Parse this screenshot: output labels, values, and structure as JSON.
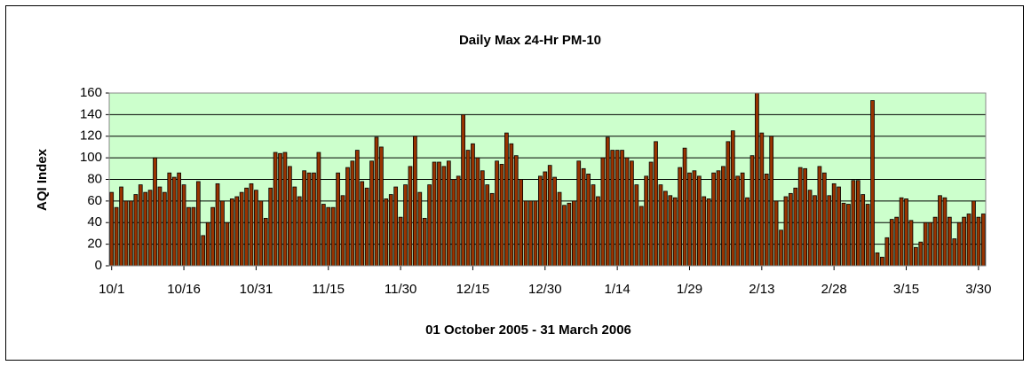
{
  "chart_data": {
    "type": "bar",
    "title": "Daily Max 24-Hr PM-10",
    "ylabel": "AQI Index",
    "xlabel": "01 October 2005 - 31 March 2006",
    "categories": [
      "10/1",
      null,
      null,
      null,
      null,
      null,
      null,
      null,
      null,
      null,
      null,
      null,
      null,
      null,
      null,
      "10/16",
      null,
      null,
      null,
      null,
      null,
      null,
      null,
      null,
      null,
      null,
      null,
      null,
      null,
      null,
      "10/31",
      null,
      null,
      null,
      null,
      null,
      null,
      null,
      null,
      null,
      null,
      null,
      null,
      null,
      null,
      "11/15",
      null,
      null,
      null,
      null,
      null,
      null,
      null,
      null,
      null,
      null,
      null,
      null,
      null,
      null,
      "11/30",
      null,
      null,
      null,
      null,
      null,
      null,
      null,
      null,
      null,
      null,
      null,
      null,
      null,
      null,
      "12/15",
      null,
      null,
      null,
      null,
      null,
      null,
      null,
      null,
      null,
      null,
      null,
      null,
      null,
      null,
      "12/30",
      null,
      null,
      null,
      null,
      null,
      null,
      null,
      null,
      null,
      null,
      null,
      null,
      null,
      null,
      "1/14",
      null,
      null,
      null,
      null,
      null,
      null,
      null,
      null,
      null,
      null,
      null,
      null,
      null,
      null,
      "1/29",
      null,
      null,
      null,
      null,
      null,
      null,
      null,
      null,
      null,
      null,
      null,
      null,
      null,
      null,
      "2/13",
      null,
      null,
      null,
      null,
      null,
      null,
      null,
      null,
      null,
      null,
      null,
      null,
      null,
      null,
      "2/28",
      null,
      null,
      null,
      null,
      null,
      null,
      null,
      null,
      null,
      null,
      null,
      null,
      null,
      null,
      "3/15",
      null,
      null,
      null,
      null,
      null,
      null,
      null,
      null,
      null,
      null,
      null,
      null,
      null,
      null,
      "3/30",
      null
    ],
    "values": [
      68,
      54,
      73,
      60,
      60,
      66,
      75,
      68,
      70,
      100,
      73,
      68,
      86,
      82,
      86,
      75,
      54,
      54,
      78,
      28,
      40,
      54,
      76,
      60,
      40,
      62,
      64,
      68,
      72,
      76,
      70,
      60,
      44,
      72,
      105,
      104,
      105,
      92,
      73,
      64,
      88,
      86,
      86,
      105,
      57,
      54,
      54,
      86,
      65,
      91,
      97,
      107,
      78,
      72,
      97,
      119,
      110,
      62,
      66,
      73,
      45,
      75,
      92,
      120,
      68,
      44,
      75,
      96,
      96,
      92,
      97,
      80,
      83,
      140,
      107,
      113,
      100,
      88,
      75,
      67,
      97,
      94,
      123,
      113,
      102,
      80,
      60,
      60,
      60,
      83,
      87,
      93,
      82,
      68,
      56,
      58,
      60,
      97,
      90,
      85,
      75,
      64,
      100,
      119,
      107,
      107,
      107,
      100,
      97,
      75,
      55,
      83,
      96,
      115,
      75,
      69,
      65,
      63,
      91,
      109,
      86,
      88,
      83,
      64,
      62,
      86,
      88,
      92,
      115,
      125,
      83,
      86,
      63,
      102,
      160,
      123,
      85,
      120,
      60,
      33,
      64,
      67,
      72,
      91,
      90,
      70,
      65,
      92,
      86,
      65,
      76,
      73,
      58,
      57,
      79,
      79,
      66,
      57,
      153,
      12,
      8,
      26,
      43,
      45,
      63,
      62,
      42,
      17,
      22,
      40,
      40,
      45,
      65,
      63,
      45,
      25,
      40,
      45,
      48,
      60,
      45,
      48
    ],
    "color": "#993300",
    "plot_background": "#ccffcc",
    "ylim": [
      0,
      160
    ],
    "yticks": [
      0,
      20,
      40,
      60,
      80,
      100,
      120,
      140,
      160
    ],
    "grid": true
  }
}
